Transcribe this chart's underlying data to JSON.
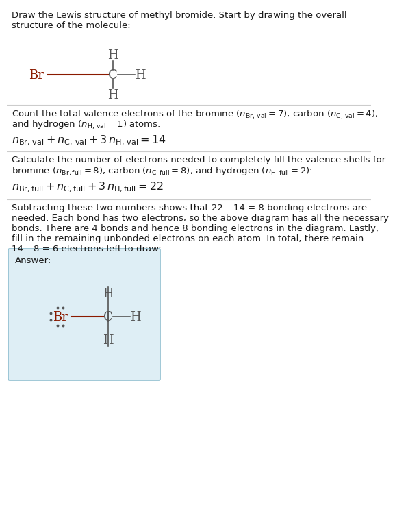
{
  "bg_color": "#ffffff",
  "box_bg": "#deeef5",
  "box_border": "#90bfd0",
  "br_color": "#8b1a00",
  "atom_color": "#555555",
  "bond_br_color": "#8b1a00",
  "bond_ch_color": "#888888",
  "text_color": "#1a1a1a",
  "line_color": "#cccccc",
  "answer_label": "Answer:",
  "title_line1": "Draw the Lewis structure of methyl bromide. Start by drawing the overall",
  "title_line2": "structure of the molecule:",
  "s1_line1": "Count the total valence electrons of the bromine ($n_{\\mathrm{Br,\\,val}} = 7$), carbon ($n_{\\mathrm{C,\\,val}} = 4$),",
  "s1_line2": "and hydrogen ($n_{\\mathrm{H,\\,val}} = 1$) atoms:",
  "s1_eq": "$n_{\\mathrm{Br,\\,val}} + n_{\\mathrm{C,\\,val}} + 3\\,n_{\\mathrm{H,\\,val}} = 14$",
  "s2_line1": "Calculate the number of electrons needed to completely fill the valence shells for",
  "s2_line2": "bromine ($n_{\\mathrm{Br,full}} = 8$), carbon ($n_{\\mathrm{C,full}} = 8$), and hydrogen ($n_{\\mathrm{H,full}} = 2$):",
  "s2_eq": "$n_{\\mathrm{Br,full}} + n_{\\mathrm{C,full}} + 3\\,n_{\\mathrm{H,full}} = 22$",
  "s3_line1": "Subtracting these two numbers shows that 22 – 14 = 8 bonding electrons are",
  "s3_line2": "needed. Each bond has two electrons, so the above diagram has all the necessary",
  "s3_line3": "bonds. There are 4 bonds and hence 8 bonding electrons in the diagram. Lastly,",
  "s3_line4": "fill in the remaining unbonded electrons on each atom. In total, there remain",
  "s3_line5": "14 – 8 = 6 electrons left to draw:"
}
